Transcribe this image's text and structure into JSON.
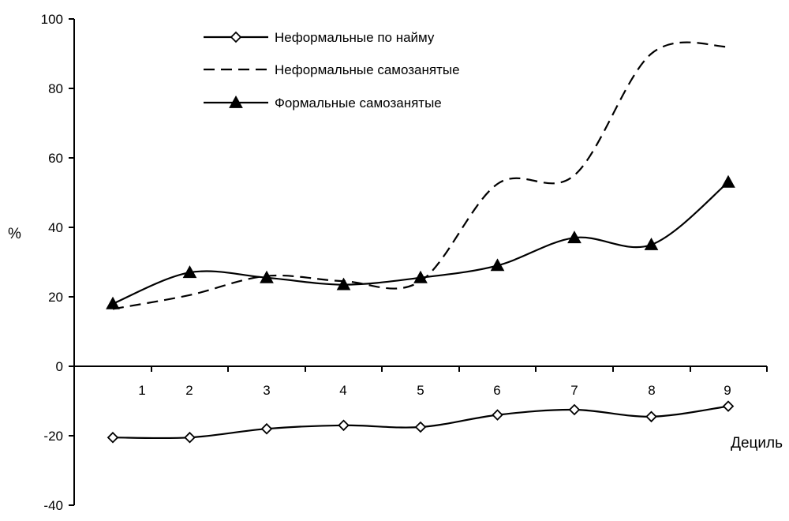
{
  "chart_data": {
    "type": "line",
    "ylabel": "%",
    "xlabel": "Дециль",
    "ylim": [
      -40,
      100
    ],
    "yticks": [
      -40,
      -20,
      0,
      20,
      40,
      60,
      80,
      100
    ],
    "x_tick_labels": [
      "1",
      "2",
      "3",
      "4",
      "5",
      "6",
      "7",
      "8",
      "9"
    ],
    "legend_position": "top-center",
    "series": [
      {
        "name": "Неформальные по найму",
        "style": "solid",
        "marker": "diamond-open",
        "color": "#000000",
        "x": [
          1,
          2,
          3,
          4,
          5,
          6,
          7,
          8,
          9
        ],
        "values": [
          -20.5,
          -20.5,
          -18,
          -17,
          -17.5,
          -14,
          -12.5,
          -14.5,
          -11.5
        ]
      },
      {
        "name": "Неформальные самозанятые",
        "style": "dashed",
        "marker": "none",
        "color": "#000000",
        "x": [
          1,
          2,
          3,
          4,
          5,
          6,
          7,
          8,
          9
        ],
        "values": [
          16.5,
          20.5,
          26,
          24.5,
          24.5,
          52.5,
          55,
          90,
          92
        ]
      },
      {
        "name": "Формальные самозанятые",
        "style": "solid",
        "marker": "triangle-filled",
        "color": "#000000",
        "x": [
          1,
          2,
          3,
          4,
          5,
          6,
          7,
          8,
          9
        ],
        "values": [
          18,
          27,
          25.5,
          23.5,
          25.5,
          29,
          37,
          35,
          53
        ]
      }
    ]
  }
}
